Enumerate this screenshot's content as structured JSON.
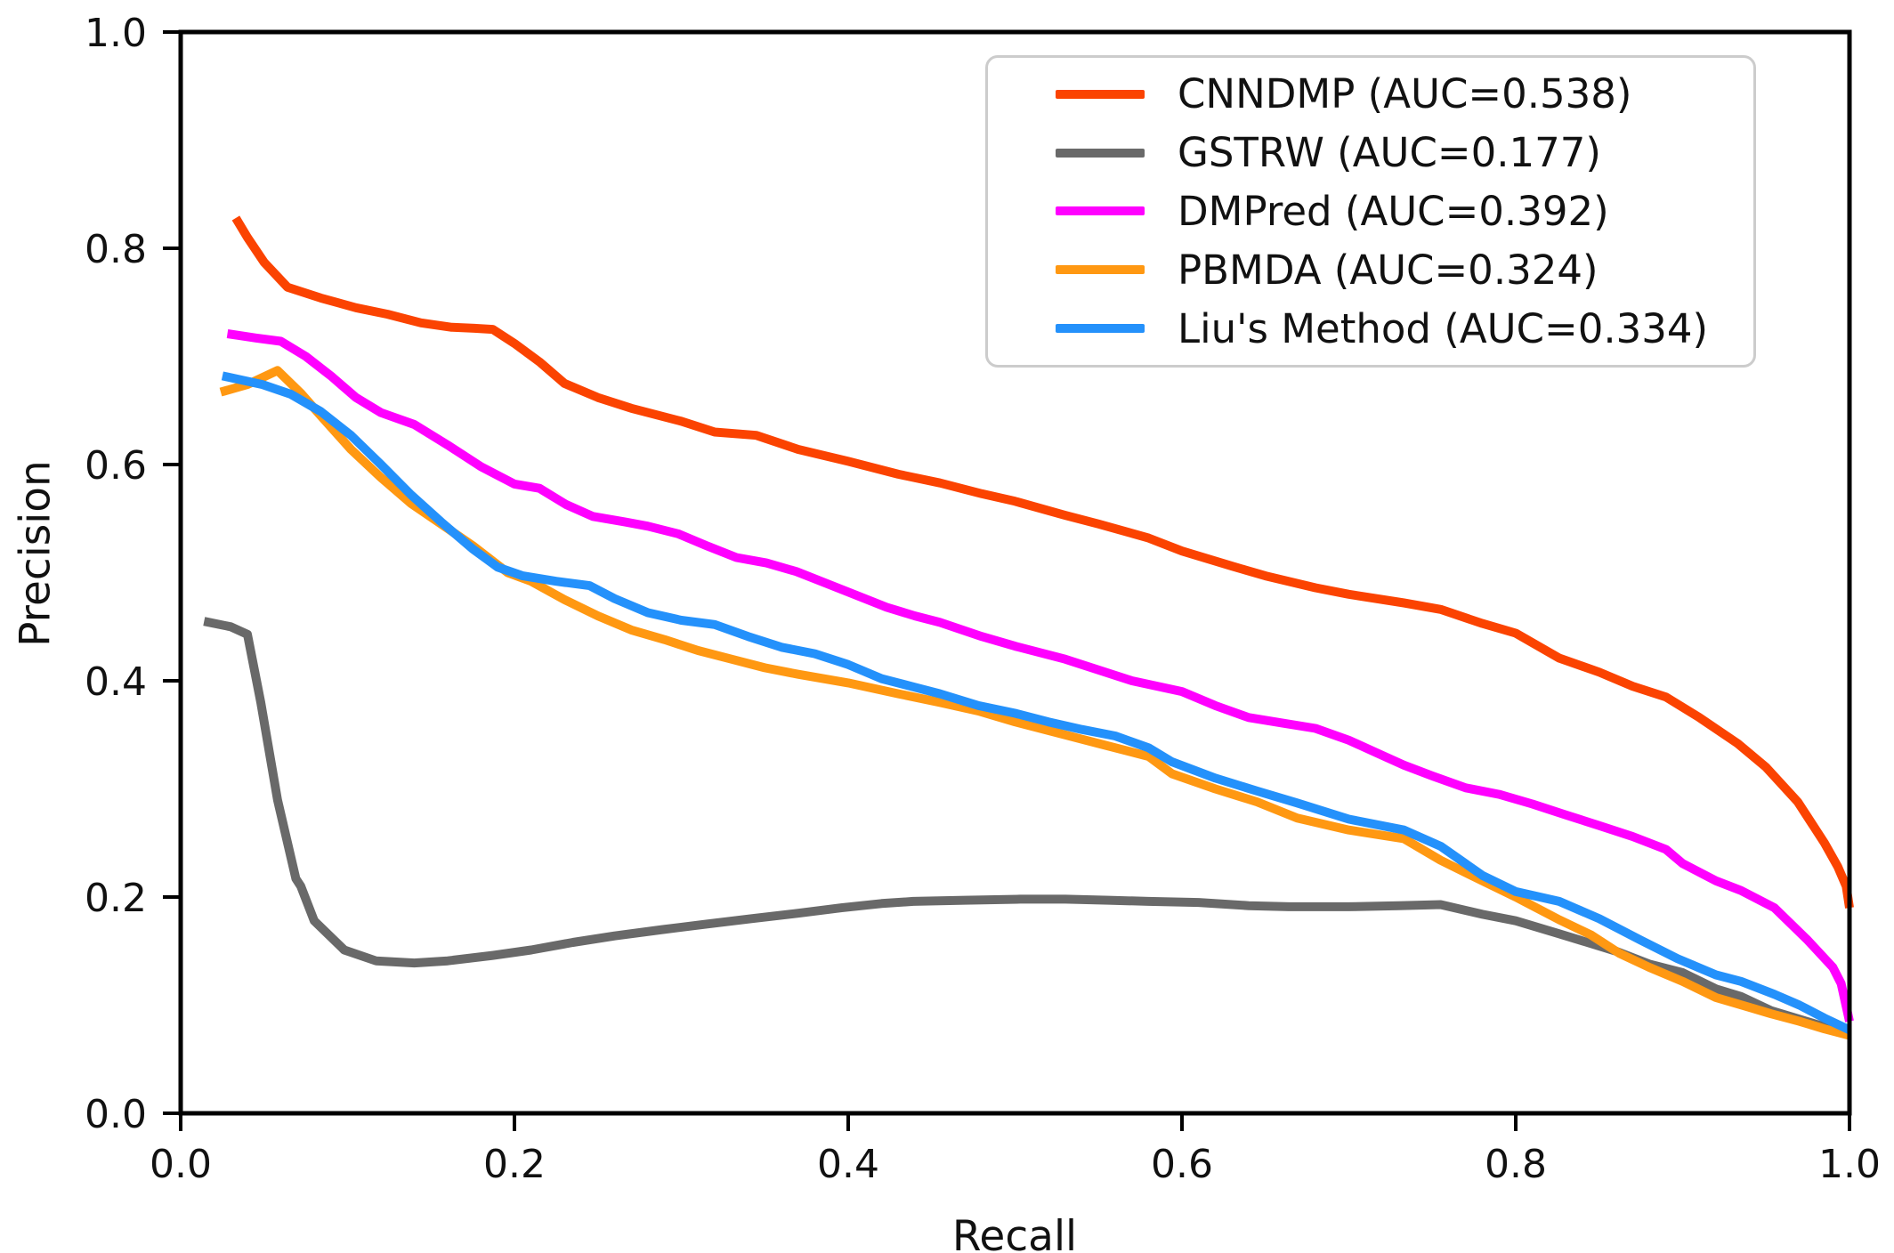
{
  "figure": {
    "background": "#ffffff",
    "text_color": "#111111"
  },
  "chart_data": {
    "type": "line",
    "title": "",
    "xlabel": "Recall",
    "ylabel": "Precision",
    "xlim": [
      0.0,
      1.0
    ],
    "ylim": [
      0.0,
      1.0
    ],
    "x_ticks": [
      "0.0",
      "0.2",
      "0.4",
      "0.6",
      "0.8",
      "1.0"
    ],
    "y_ticks": [
      "0.0",
      "0.2",
      "0.4",
      "0.6",
      "0.8",
      "1.0"
    ],
    "grid": false,
    "legend_position": "upper right",
    "series": [
      {
        "name": "CNNDMP",
        "auc": 0.538,
        "legend_label": "CNNDMP (AUC=0.538)",
        "color": "#fb4301",
        "points": [
          [
            0.033,
            0.828
          ],
          [
            0.04,
            0.81
          ],
          [
            0.05,
            0.787
          ],
          [
            0.064,
            0.764
          ],
          [
            0.084,
            0.754
          ],
          [
            0.105,
            0.745
          ],
          [
            0.124,
            0.739
          ],
          [
            0.144,
            0.731
          ],
          [
            0.162,
            0.727
          ],
          [
            0.176,
            0.726
          ],
          [
            0.187,
            0.725
          ],
          [
            0.2,
            0.712
          ],
          [
            0.215,
            0.695
          ],
          [
            0.23,
            0.675
          ],
          [
            0.25,
            0.662
          ],
          [
            0.27,
            0.652
          ],
          [
            0.3,
            0.64
          ],
          [
            0.32,
            0.63
          ],
          [
            0.345,
            0.627
          ],
          [
            0.37,
            0.614
          ],
          [
            0.4,
            0.603
          ],
          [
            0.43,
            0.591
          ],
          [
            0.455,
            0.583
          ],
          [
            0.48,
            0.573
          ],
          [
            0.5,
            0.566
          ],
          [
            0.53,
            0.553
          ],
          [
            0.55,
            0.545
          ],
          [
            0.58,
            0.532
          ],
          [
            0.6,
            0.52
          ],
          [
            0.63,
            0.506
          ],
          [
            0.65,
            0.497
          ],
          [
            0.68,
            0.486
          ],
          [
            0.7,
            0.48
          ],
          [
            0.733,
            0.472
          ],
          [
            0.755,
            0.466
          ],
          [
            0.78,
            0.453
          ],
          [
            0.8,
            0.444
          ],
          [
            0.826,
            0.421
          ],
          [
            0.85,
            0.408
          ],
          [
            0.87,
            0.395
          ],
          [
            0.89,
            0.385
          ],
          [
            0.91,
            0.366
          ],
          [
            0.933,
            0.342
          ],
          [
            0.95,
            0.32
          ],
          [
            0.969,
            0.288
          ],
          [
            0.985,
            0.25
          ],
          [
            0.993,
            0.228
          ],
          [
            0.998,
            0.21
          ],
          [
            1.0,
            0.19
          ]
        ]
      },
      {
        "name": "GSTRW",
        "auc": 0.177,
        "legend_label": "GSTRW (AUC=0.177)",
        "color": "#696969",
        "points": [
          [
            0.014,
            0.455
          ],
          [
            0.03,
            0.45
          ],
          [
            0.04,
            0.443
          ],
          [
            0.048,
            0.38
          ],
          [
            0.058,
            0.29
          ],
          [
            0.069,
            0.217
          ],
          [
            0.072,
            0.21
          ],
          [
            0.08,
            0.178
          ],
          [
            0.098,
            0.151
          ],
          [
            0.117,
            0.141
          ],
          [
            0.14,
            0.139
          ],
          [
            0.16,
            0.141
          ],
          [
            0.187,
            0.146
          ],
          [
            0.21,
            0.151
          ],
          [
            0.235,
            0.158
          ],
          [
            0.26,
            0.164
          ],
          [
            0.289,
            0.17
          ],
          [
            0.315,
            0.175
          ],
          [
            0.342,
            0.18
          ],
          [
            0.37,
            0.185
          ],
          [
            0.396,
            0.19
          ],
          [
            0.42,
            0.194
          ],
          [
            0.439,
            0.196
          ],
          [
            0.47,
            0.197
          ],
          [
            0.503,
            0.198
          ],
          [
            0.53,
            0.198
          ],
          [
            0.556,
            0.197
          ],
          [
            0.58,
            0.196
          ],
          [
            0.61,
            0.195
          ],
          [
            0.64,
            0.192
          ],
          [
            0.664,
            0.191
          ],
          [
            0.7,
            0.191
          ],
          [
            0.73,
            0.192
          ],
          [
            0.755,
            0.193
          ],
          [
            0.78,
            0.184
          ],
          [
            0.8,
            0.178
          ],
          [
            0.826,
            0.166
          ],
          [
            0.86,
            0.15
          ],
          [
            0.88,
            0.138
          ],
          [
            0.9,
            0.13
          ],
          [
            0.92,
            0.115
          ],
          [
            0.935,
            0.108
          ],
          [
            0.953,
            0.095
          ],
          [
            0.97,
            0.087
          ],
          [
            0.985,
            0.08
          ],
          [
            1.0,
            0.074
          ]
        ]
      },
      {
        "name": "DMPred",
        "auc": 0.392,
        "legend_label": "DMPred (AUC=0.392)",
        "color": "#ff00ff",
        "points": [
          [
            0.028,
            0.721
          ],
          [
            0.045,
            0.717
          ],
          [
            0.06,
            0.714
          ],
          [
            0.075,
            0.7
          ],
          [
            0.09,
            0.682
          ],
          [
            0.105,
            0.662
          ],
          [
            0.12,
            0.648
          ],
          [
            0.14,
            0.637
          ],
          [
            0.16,
            0.618
          ],
          [
            0.18,
            0.598
          ],
          [
            0.2,
            0.582
          ],
          [
            0.215,
            0.578
          ],
          [
            0.231,
            0.563
          ],
          [
            0.247,
            0.552
          ],
          [
            0.266,
            0.547
          ],
          [
            0.28,
            0.543
          ],
          [
            0.298,
            0.536
          ],
          [
            0.315,
            0.525
          ],
          [
            0.333,
            0.514
          ],
          [
            0.351,
            0.509
          ],
          [
            0.369,
            0.501
          ],
          [
            0.387,
            0.49
          ],
          [
            0.405,
            0.479
          ],
          [
            0.423,
            0.468
          ],
          [
            0.44,
            0.46
          ],
          [
            0.455,
            0.454
          ],
          [
            0.48,
            0.441
          ],
          [
            0.5,
            0.432
          ],
          [
            0.53,
            0.42
          ],
          [
            0.55,
            0.41
          ],
          [
            0.57,
            0.4
          ],
          [
            0.6,
            0.39
          ],
          [
            0.62,
            0.377
          ],
          [
            0.64,
            0.366
          ],
          [
            0.66,
            0.361
          ],
          [
            0.68,
            0.356
          ],
          [
            0.7,
            0.345
          ],
          [
            0.72,
            0.331
          ],
          [
            0.733,
            0.322
          ],
          [
            0.75,
            0.312
          ],
          [
            0.77,
            0.301
          ],
          [
            0.79,
            0.295
          ],
          [
            0.81,
            0.286
          ],
          [
            0.83,
            0.276
          ],
          [
            0.85,
            0.266
          ],
          [
            0.87,
            0.256
          ],
          [
            0.89,
            0.244
          ],
          [
            0.9,
            0.231
          ],
          [
            0.92,
            0.215
          ],
          [
            0.935,
            0.206
          ],
          [
            0.955,
            0.19
          ],
          [
            0.975,
            0.16
          ],
          [
            0.99,
            0.135
          ],
          [
            0.995,
            0.12
          ],
          [
            1.0,
            0.085
          ]
        ]
      },
      {
        "name": "PBMDA",
        "auc": 0.324,
        "legend_label": "PBMDA (AUC=0.324)",
        "color": "#ff9812",
        "points": [
          [
            0.024,
            0.667
          ],
          [
            0.04,
            0.674
          ],
          [
            0.058,
            0.687
          ],
          [
            0.072,
            0.666
          ],
          [
            0.084,
            0.645
          ],
          [
            0.102,
            0.614
          ],
          [
            0.12,
            0.588
          ],
          [
            0.138,
            0.564
          ],
          [
            0.156,
            0.545
          ],
          [
            0.175,
            0.525
          ],
          [
            0.196,
            0.5
          ],
          [
            0.21,
            0.492
          ],
          [
            0.23,
            0.475
          ],
          [
            0.25,
            0.46
          ],
          [
            0.27,
            0.447
          ],
          [
            0.29,
            0.438
          ],
          [
            0.31,
            0.428
          ],
          [
            0.33,
            0.42
          ],
          [
            0.35,
            0.412
          ],
          [
            0.37,
            0.406
          ],
          [
            0.4,
            0.398
          ],
          [
            0.43,
            0.388
          ],
          [
            0.455,
            0.38
          ],
          [
            0.478,
            0.372
          ],
          [
            0.5,
            0.362
          ],
          [
            0.53,
            0.35
          ],
          [
            0.55,
            0.342
          ],
          [
            0.58,
            0.33
          ],
          [
            0.594,
            0.314
          ],
          [
            0.62,
            0.3
          ],
          [
            0.645,
            0.288
          ],
          [
            0.669,
            0.273
          ],
          [
            0.7,
            0.262
          ],
          [
            0.733,
            0.254
          ],
          [
            0.755,
            0.234
          ],
          [
            0.78,
            0.215
          ],
          [
            0.8,
            0.2
          ],
          [
            0.826,
            0.179
          ],
          [
            0.845,
            0.165
          ],
          [
            0.862,
            0.148
          ],
          [
            0.88,
            0.135
          ],
          [
            0.9,
            0.122
          ],
          [
            0.92,
            0.107
          ],
          [
            0.94,
            0.098
          ],
          [
            0.953,
            0.092
          ],
          [
            0.97,
            0.085
          ],
          [
            0.985,
            0.078
          ],
          [
            1.0,
            0.072
          ]
        ]
      },
      {
        "name": "Liu's Method",
        "auc": 0.334,
        "legend_label": "Liu's Method (AUC=0.334)",
        "color": "#2491fb",
        "points": [
          [
            0.025,
            0.682
          ],
          [
            0.049,
            0.674
          ],
          [
            0.066,
            0.665
          ],
          [
            0.084,
            0.649
          ],
          [
            0.102,
            0.627
          ],
          [
            0.12,
            0.6
          ],
          [
            0.138,
            0.572
          ],
          [
            0.156,
            0.547
          ],
          [
            0.175,
            0.522
          ],
          [
            0.19,
            0.505
          ],
          [
            0.205,
            0.497
          ],
          [
            0.225,
            0.492
          ],
          [
            0.245,
            0.488
          ],
          [
            0.26,
            0.476
          ],
          [
            0.28,
            0.463
          ],
          [
            0.3,
            0.456
          ],
          [
            0.32,
            0.452
          ],
          [
            0.34,
            0.441
          ],
          [
            0.36,
            0.431
          ],
          [
            0.38,
            0.425
          ],
          [
            0.4,
            0.415
          ],
          [
            0.42,
            0.402
          ],
          [
            0.44,
            0.394
          ],
          [
            0.455,
            0.388
          ],
          [
            0.478,
            0.377
          ],
          [
            0.5,
            0.37
          ],
          [
            0.52,
            0.362
          ],
          [
            0.54,
            0.355
          ],
          [
            0.56,
            0.349
          ],
          [
            0.58,
            0.338
          ],
          [
            0.594,
            0.325
          ],
          [
            0.62,
            0.31
          ],
          [
            0.645,
            0.298
          ],
          [
            0.669,
            0.287
          ],
          [
            0.7,
            0.272
          ],
          [
            0.733,
            0.262
          ],
          [
            0.755,
            0.247
          ],
          [
            0.78,
            0.22
          ],
          [
            0.8,
            0.205
          ],
          [
            0.826,
            0.196
          ],
          [
            0.85,
            0.18
          ],
          [
            0.875,
            0.16
          ],
          [
            0.897,
            0.143
          ],
          [
            0.92,
            0.128
          ],
          [
            0.935,
            0.122
          ],
          [
            0.955,
            0.11
          ],
          [
            0.97,
            0.1
          ],
          [
            0.985,
            0.088
          ],
          [
            1.0,
            0.077
          ]
        ]
      }
    ]
  }
}
